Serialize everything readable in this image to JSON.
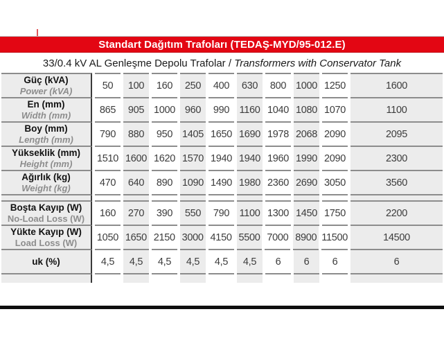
{
  "colors": {
    "accent_red": "#e30613",
    "cell_gray": "#ececec",
    "rule_gray": "#8c8c8c",
    "label_divider": "#3a3a3a",
    "bottom_rule": "#0e0e0e",
    "english_label_gray": "#8d8d8d"
  },
  "title_bar": {
    "text": "Standart Dağıtım Trafoları (TEDAŞ-MYD/95-012.E)"
  },
  "subtitle": {
    "tr": "33/0.4 kV AL Genleşme Depolu Trafolar",
    "sep": " / ",
    "en": "Transformers with Conservator Tank"
  },
  "table": {
    "power_ratings_kva": [
      "50",
      "100",
      "160",
      "250",
      "400",
      "630",
      "800",
      "1000",
      "1250",
      "1600"
    ],
    "rows": [
      {
        "label_tr": "Güç (kVA)",
        "label_en": "Power (kVA)",
        "en_italic": true,
        "values": [
          "50",
          "100",
          "160",
          "250",
          "400",
          "630",
          "800",
          "1000",
          "1250",
          "1600"
        ]
      },
      {
        "label_tr": "En (mm)",
        "label_en": "Width (mm)",
        "en_italic": true,
        "values": [
          "865",
          "905",
          "1000",
          "960",
          "990",
          "1160",
          "1040",
          "1080",
          "1070",
          "1100"
        ]
      },
      {
        "label_tr": "Boy (mm)",
        "label_en": "Length (mm)",
        "en_italic": true,
        "values": [
          "790",
          "880",
          "950",
          "1405",
          "1650",
          "1690",
          "1978",
          "2068",
          "2090",
          "2095"
        ]
      },
      {
        "label_tr": "Yükseklik (mm)",
        "label_en": "Height (mm)",
        "en_italic": true,
        "values": [
          "1510",
          "1600",
          "1620",
          "1570",
          "1940",
          "1940",
          "1960",
          "1990",
          "2090",
          "2300"
        ]
      },
      {
        "label_tr": "Ağırlık (kg)",
        "label_en": "Weight (kg)",
        "en_italic": true,
        "values": [
          "470",
          "640",
          "890",
          "1090",
          "1490",
          "1980",
          "2360",
          "2690",
          "3050",
          "3560"
        ]
      },
      {
        "spacer": true
      },
      {
        "label_tr": "Boşta Kayıp (W)",
        "label_en": "No-Load Loss (W)",
        "en_italic": false,
        "values": [
          "160",
          "270",
          "390",
          "550",
          "790",
          "1100",
          "1300",
          "1450",
          "1750",
          "2200"
        ]
      },
      {
        "label_tr": "Yükte Kayıp (W)",
        "label_en": "Load Loss (W)",
        "en_italic": false,
        "values": [
          "1050",
          "1650",
          "2150",
          "3000",
          "4150",
          "5500",
          "7000",
          "8900",
          "11500",
          "14500"
        ]
      },
      {
        "label_tr": "uk (%)",
        "label_en": "",
        "en_italic": false,
        "values": [
          "4,5",
          "4,5",
          "4,5",
          "4,5",
          "4,5",
          "4,5",
          "6",
          "6",
          "6",
          "6"
        ]
      },
      {
        "spacer": true
      }
    ]
  }
}
